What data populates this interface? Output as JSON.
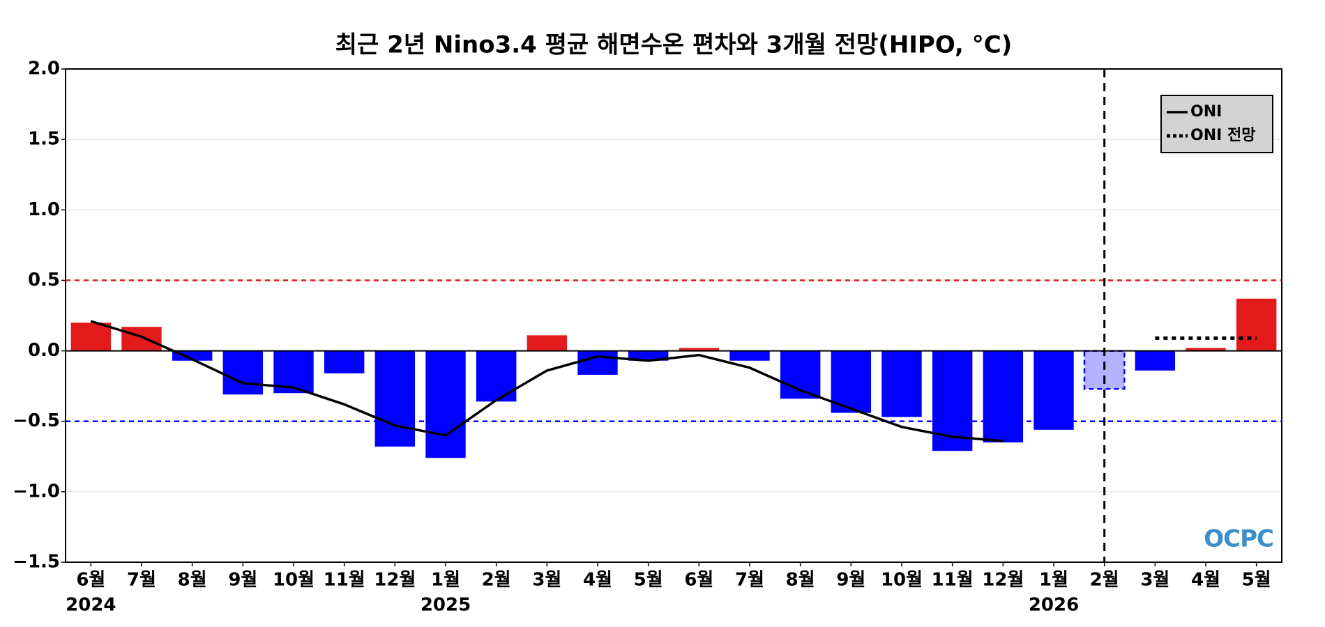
{
  "chart_data": {
    "type": "bar",
    "title": "최근 2년 Nino3.4 평균 해면수온 편차와 3개월 전망(HIPO, °C)",
    "categories": [
      "6월",
      "7월",
      "8월",
      "9월",
      "10월",
      "11월",
      "12월",
      "1월",
      "2월",
      "3월",
      "4월",
      "5월",
      "6월",
      "7월",
      "8월",
      "9월",
      "10월",
      "11월",
      "12월",
      "1월",
      "2월",
      "3월",
      "4월",
      "5월"
    ],
    "years": [
      "2024",
      null,
      null,
      null,
      null,
      null,
      null,
      "2025",
      null,
      null,
      null,
      null,
      null,
      null,
      null,
      null,
      null,
      null,
      null,
      "2026",
      null,
      null,
      null,
      null
    ],
    "values": [
      0.2,
      0.17,
      -0.07,
      -0.31,
      -0.3,
      -0.16,
      -0.68,
      -0.76,
      -0.36,
      0.11,
      -0.17,
      -0.07,
      0.02,
      -0.07,
      -0.34,
      -0.44,
      -0.47,
      -0.71,
      -0.65,
      -0.56,
      -0.27,
      -0.14,
      0.02,
      0.37
    ],
    "bar_colors": [
      "#e31a1c",
      "#e31a1c",
      "#0000ff",
      "#0000ff",
      "#0000ff",
      "#0000ff",
      "#0000ff",
      "#0000ff",
      "#0000ff",
      "#e31a1c",
      "#0000ff",
      "#0000ff",
      "#e31a1c",
      "#0000ff",
      "#0000ff",
      "#0000ff",
      "#0000ff",
      "#0000ff",
      "#0000ff",
      "#0000ff",
      "#b3b3ff",
      "#0000ff",
      "#e31a1c",
      "#e31a1c"
    ],
    "bar_edge_colors": [
      null,
      null,
      null,
      null,
      null,
      null,
      null,
      null,
      null,
      null,
      null,
      null,
      null,
      null,
      null,
      null,
      null,
      null,
      null,
      null,
      "#0000ff",
      null,
      null,
      null
    ],
    "series": [
      {
        "name": "ONI",
        "color": "#000000",
        "style": "solid",
        "values": [
          0.21,
          0.1,
          -0.06,
          -0.23,
          -0.26,
          -0.38,
          -0.53,
          -0.6,
          -0.35,
          -0.14,
          -0.04,
          -0.07,
          -0.03,
          -0.12,
          -0.28,
          -0.41,
          -0.54,
          -0.61,
          -0.64,
          null,
          null,
          null,
          null,
          null
        ]
      },
      {
        "name": "ONI 전망",
        "color": "#000000",
        "style": "dotted",
        "values": [
          null,
          null,
          null,
          null,
          null,
          null,
          null,
          null,
          null,
          null,
          null,
          null,
          null,
          null,
          null,
          null,
          null,
          null,
          null,
          null,
          null,
          0.09,
          0.09,
          0.09
        ]
      }
    ],
    "reference_lines": [
      {
        "value": 0.5,
        "color": "#e31a1c"
      },
      {
        "value": -0.5,
        "color": "#0000ff"
      }
    ],
    "vline_index": 20,
    "ylim": [
      -1.5,
      2.0
    ],
    "yticks": [
      {
        "value": -1.5,
        "label": "−1.5"
      },
      {
        "value": -1.0,
        "label": "−1.0"
      },
      {
        "value": -0.5,
        "label": "−0.5"
      },
      {
        "value": 0.0,
        "label": "0.0"
      },
      {
        "value": 0.5,
        "label": "0.5"
      },
      {
        "value": 1.0,
        "label": "1.0"
      },
      {
        "value": 1.5,
        "label": "1.5"
      },
      {
        "value": 2.0,
        "label": "2.0"
      }
    ],
    "grid": true,
    "legend": "upper right",
    "logo": "OCPC"
  }
}
